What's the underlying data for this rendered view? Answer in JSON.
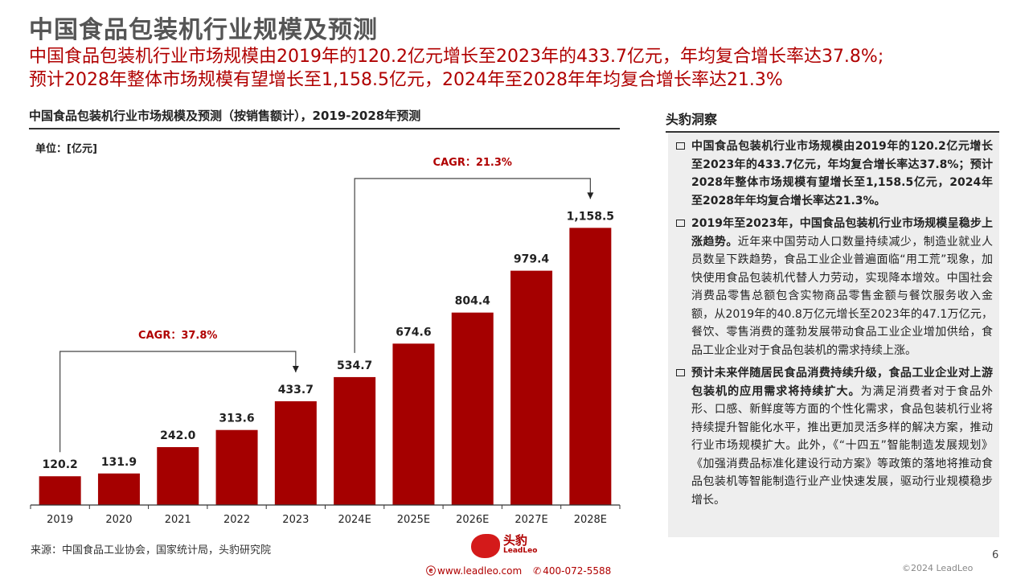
{
  "header": {
    "title": "中国食品包装机行业规模及预测",
    "subtitle_lines": [
      "中国食品包装机行业市场规模由2019年的120.2亿元增长至2023年的433.7亿元，年均复合增长率达37.8%;",
      "预计2028年整体市场规模有望增长至1,158.5亿元，2024年至2028年年均复合增长率达21.3%"
    ]
  },
  "chart_data": {
    "type": "bar",
    "title": "中国食品包装机行业市场规模及预测（按销售额计），2019-2028年预测",
    "unit": "单位：[亿元]",
    "categories": [
      "2019",
      "2020",
      "2021",
      "2022",
      "2023",
      "2024E",
      "2025E",
      "2026E",
      "2027E",
      "2028E"
    ],
    "values": [
      120.2,
      131.9,
      242.0,
      313.6,
      433.7,
      534.7,
      674.6,
      804.4,
      979.4,
      1158.5
    ],
    "value_labels": [
      "120.2",
      "131.9",
      "242.0",
      "313.6",
      "433.7",
      "534.7",
      "674.6",
      "804.4",
      "979.4",
      "1,158.5"
    ],
    "bar_color": "#a50000",
    "grid": false,
    "annotations": [
      {
        "label": "CAGR：37.8%",
        "from": "2019",
        "to": "2023"
      },
      {
        "label": "CAGR：21.3%",
        "from": "2024E",
        "to": "2028E"
      }
    ]
  },
  "source": "来源：中国食品工业协会，国家统计局，头豹研究院",
  "insights": {
    "header": "头豹洞察",
    "bullets": [
      {
        "bold": "中国食品包装机行业市场规模由2019年的120.2亿元增长至2023年的433.7亿元，年均复合增长率达37.8%；预计2028年整体市场规模有望增长至1,158.5亿元，2024年至2028年年均复合增长率达21.3%。",
        "text": ""
      },
      {
        "bold": "2019年至2023年，中国食品包装机行业市场规模呈稳步上涨趋势。",
        "text": "近年来中国劳动人口数量持续减少，制造业就业人员数呈下跌趋势，食品工业企业普遍面临“用工荒”现象，加快使用食品包装机代替人力劳动，实现降本增效。中国社会消费品零售总额包含实物商品零售金额与餐饮服务收入金额，从2019年的40.8万亿元增长至2023年的47.1万亿元，餐饮、零售消费的蓬勃发展带动食品工业企业增加供给，食品工业企业对于食品包装机的需求持续上涨。"
      },
      {
        "bold": "预计未来伴随居民食品消费持续升级，食品工业企业对上游包装机的应用需求将持续扩大。",
        "text": "为满足消费者对于食品外形、口感、新鲜度等方面的个性化需求，食品包装机行业将持续提升智能化水平，推出更加灵活多样的解决方案，推动行业市场规模扩大。此外，《“十四五”智能制造发展规划》《加强消费品标准化建设行动方案》等政策的落地将推动食品包装机等智能制造行业产业快速发展，驱动行业规模稳步增长。"
      }
    ]
  },
  "footer": {
    "logo_cn": "头豹",
    "logo_en": "LeadLeo",
    "website": "www.leadleo.com",
    "phone": "400-072-5588",
    "page_number": "6",
    "copyright": "©2024 LeadLeo"
  }
}
